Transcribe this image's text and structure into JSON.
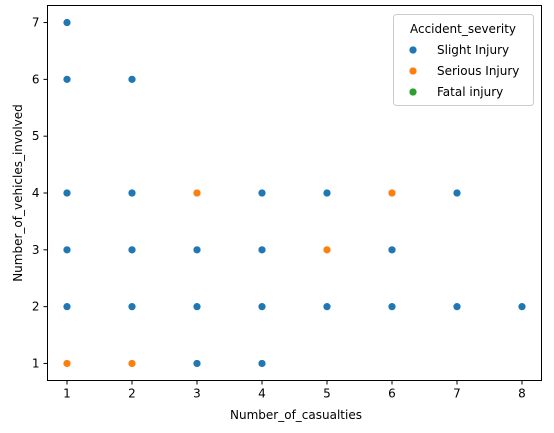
{
  "chart_data": {
    "type": "scatter",
    "title": "",
    "xlabel": "Number_of_casualties",
    "ylabel": "Number_of_vehicles_involved",
    "xlim": [
      0.7,
      8.3
    ],
    "ylim": [
      0.7,
      7.3
    ],
    "xticks": [
      "1",
      "2",
      "3",
      "4",
      "5",
      "6",
      "7",
      "8"
    ],
    "yticks": [
      "1",
      "2",
      "3",
      "4",
      "5",
      "6",
      "7"
    ],
    "grid": false,
    "legend": {
      "title": "Accident_severity",
      "placement": "top-right"
    },
    "series": [
      {
        "name": "Slight Injury",
        "color": "#1f77b4",
        "points": [
          {
            "x": 1,
            "y": 7
          },
          {
            "x": 1,
            "y": 6
          },
          {
            "x": 2,
            "y": 6
          },
          {
            "x": 1,
            "y": 4
          },
          {
            "x": 2,
            "y": 4
          },
          {
            "x": 4,
            "y": 4
          },
          {
            "x": 5,
            "y": 4
          },
          {
            "x": 7,
            "y": 4
          },
          {
            "x": 1,
            "y": 3
          },
          {
            "x": 2,
            "y": 3
          },
          {
            "x": 3,
            "y": 3
          },
          {
            "x": 4,
            "y": 3
          },
          {
            "x": 6,
            "y": 3
          },
          {
            "x": 1,
            "y": 2
          },
          {
            "x": 2,
            "y": 2
          },
          {
            "x": 3,
            "y": 2
          },
          {
            "x": 4,
            "y": 2
          },
          {
            "x": 5,
            "y": 2
          },
          {
            "x": 6,
            "y": 2
          },
          {
            "x": 7,
            "y": 2
          },
          {
            "x": 8,
            "y": 2
          },
          {
            "x": 3,
            "y": 1
          },
          {
            "x": 4,
            "y": 1
          }
        ]
      },
      {
        "name": "Serious Injury",
        "color": "#ff7f0e",
        "points": [
          {
            "x": 3,
            "y": 4
          },
          {
            "x": 6,
            "y": 4
          },
          {
            "x": 5,
            "y": 3
          },
          {
            "x": 1,
            "y": 1
          },
          {
            "x": 2,
            "y": 1
          }
        ]
      },
      {
        "name": "Fatal injury",
        "color": "#2ca02c",
        "points": []
      }
    ]
  }
}
